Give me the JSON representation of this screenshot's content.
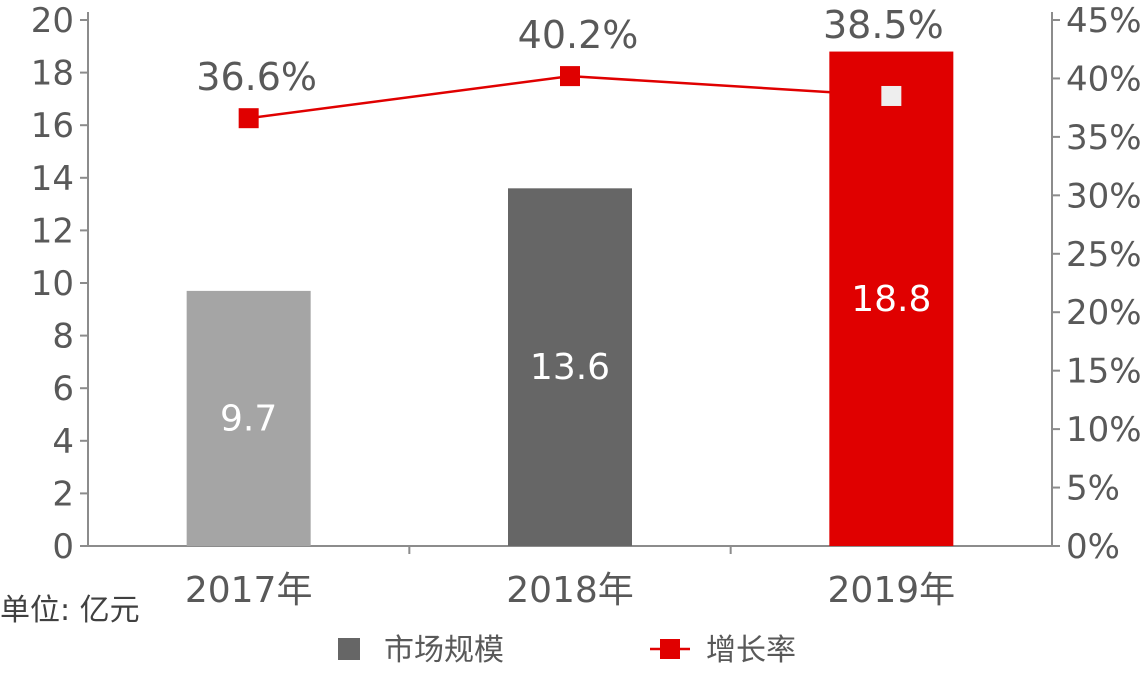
{
  "chart_data": {
    "type": "bar",
    "categories": [
      "2017年",
      "2018年",
      "2019年"
    ],
    "series": [
      {
        "name": "市场规模",
        "values": [
          9.7,
          13.6,
          18.8
        ],
        "colors": [
          "#a5a5a5",
          "#666666",
          "#e00000"
        ],
        "axis": "left"
      },
      {
        "name": "增长率",
        "type": "line",
        "values": [
          36.6,
          40.2,
          38.5
        ],
        "labels": [
          "36.6%",
          "40.2%",
          "38.5%"
        ],
        "color": "#e00000",
        "axis": "right"
      }
    ],
    "bar_labels": [
      "9.7",
      "13.6",
      "18.8"
    ],
    "ylim": [
      0,
      20
    ],
    "y_ticks": [
      "0",
      "2",
      "4",
      "6",
      "8",
      "10",
      "12",
      "14",
      "16",
      "18",
      "20"
    ],
    "y2lim": [
      0,
      45
    ],
    "y2_ticks": [
      "0%",
      "5%",
      "10%",
      "15%",
      "20%",
      "25%",
      "30%",
      "35%",
      "40%",
      "45%"
    ],
    "unit_label": "单位: 亿元",
    "legend": [
      "市场规模",
      "增长率"
    ],
    "legend_position": "bottom",
    "grid": false
  }
}
